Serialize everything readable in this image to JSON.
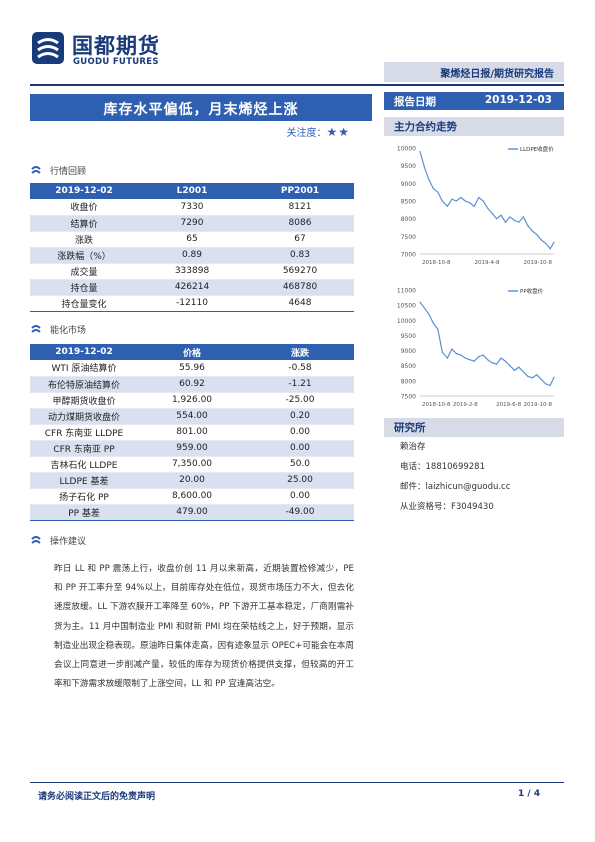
{
  "header": {
    "logo_cn": "国都期货",
    "logo_en": "GUODU FUTURES",
    "report_type": "聚烯烃日报/期货研究报告"
  },
  "title": "库存水平偏低，月末烯烃上涨",
  "attention": {
    "label": "关注度：",
    "stars": "★★"
  },
  "report_date": {
    "label": "报告日期",
    "value": "2019-12-03"
  },
  "market_review": {
    "heading": "行情回顾",
    "columns": [
      "2019-12-02",
      "L2001",
      "PP2001"
    ],
    "rows": [
      [
        "收盘价",
        "7330",
        "8121"
      ],
      [
        "结算价",
        "7290",
        "8086"
      ],
      [
        "涨跌",
        "65",
        "67"
      ],
      [
        "涨跌幅（%）",
        "0.89",
        "0.83"
      ],
      [
        "成交量",
        "333898",
        "569270"
      ],
      [
        "持仓量",
        "426214",
        "468780"
      ],
      [
        "持仓量变化",
        "-12110",
        "4648"
      ]
    ]
  },
  "energy_market": {
    "heading": "能化市场",
    "columns": [
      "2019-12-02",
      "价格",
      "涨跌"
    ],
    "rows": [
      [
        "WTI 原油结算价",
        "55.96",
        "-0.58"
      ],
      [
        "布伦特原油结算价",
        "60.92",
        "-1.21"
      ],
      [
        "甲醇期货收盘价",
        "1,926.00",
        "-25.00"
      ],
      [
        "动力煤期货收盘价",
        "554.00",
        "0.20"
      ],
      [
        "CFR 东南亚 LLDPE",
        "801.00",
        "0.00"
      ],
      [
        "CFR 东南亚 PP",
        "959.00",
        "0.00"
      ],
      [
        "吉林石化 LLDPE",
        "7,350.00",
        "50.0"
      ],
      [
        "LLDPE 基差",
        "20.00",
        "25.00"
      ],
      [
        "扬子石化 PP",
        "8,600.00",
        "0.00"
      ],
      [
        "PP 基差",
        "479.00",
        "-49.00"
      ]
    ]
  },
  "advice": {
    "heading": "操作建议",
    "text": "昨日 LL 和 PP 震荡上行，收盘价创 11 月以来新高，近期装置检修减少，PE 和 PP 开工率升至 94%以上，目前库存处在低位，现货市场压力不大，但去化速度放缓。LL 下游农膜开工率降至 60%，PP 下游开工基本稳定，厂商刚需补货为主。11 月中国制造业 PMI 和财新 PMI 均在荣枯线之上，好于预期，显示制造业出现企稳表现。原油昨日集体走高，因有迹象显示 OPEC+可能会在本周会议上同意进一步削减产量，较低的库存为现货价格提供支撑，但较高的开工率和下游需求放缓限制了上涨空间，LL 和 PP 宜逢高沽空。"
  },
  "sidebar": {
    "trend_heading": "主力合约走势",
    "research_heading": "研究所",
    "analyst_name": "赖治存",
    "phone": "电话：18810699281",
    "email": "邮件：laizhicun@guodu.cc",
    "license": "从业资格号：F3049430"
  },
  "chart_data": [
    {
      "type": "line",
      "series": [
        {
          "name": "LLDPE收盘价"
        }
      ],
      "x_ticks": [
        "2018-10-8",
        "2019-4-8",
        "2019-10-8"
      ],
      "y_ticks": [
        "7000",
        "7500",
        "8000",
        "8500",
        "9000",
        "9500",
        "10000"
      ],
      "ylim": [
        7000,
        10000
      ],
      "x": [
        "2018-10-08",
        "2018-10-22",
        "2018-11-05",
        "2018-11-19",
        "2018-12-03",
        "2018-12-17",
        "2019-01-02",
        "2019-01-16",
        "2019-01-30",
        "2019-02-13",
        "2019-02-27",
        "2019-03-13",
        "2019-03-27",
        "2019-04-10",
        "2019-04-24",
        "2019-05-08",
        "2019-05-22",
        "2019-06-05",
        "2019-06-19",
        "2019-07-03",
        "2019-07-17",
        "2019-07-31",
        "2019-08-14",
        "2019-08-28",
        "2019-09-11",
        "2019-09-25",
        "2019-10-09",
        "2019-10-23",
        "2019-11-06",
        "2019-11-20",
        "2019-12-02"
      ],
      "values": [
        9900,
        9450,
        9100,
        8850,
        8750,
        8500,
        8350,
        8550,
        8500,
        8600,
        8500,
        8450,
        8350,
        8600,
        8500,
        8300,
        8150,
        8000,
        8100,
        7900,
        8050,
        7950,
        7900,
        8050,
        7800,
        7650,
        7550,
        7400,
        7300,
        7150,
        7330
      ]
    },
    {
      "type": "line",
      "series": [
        {
          "name": "PP收盘价"
        }
      ],
      "x_ticks": [
        "2018-10-8",
        "2019-2-8",
        "2019-6-8",
        "2019-10-8"
      ],
      "y_ticks": [
        "7500",
        "8000",
        "8500",
        "9000",
        "9500",
        "10000",
        "10500",
        "11000"
      ],
      "ylim": [
        7500,
        11000
      ],
      "x": [
        "2018-10-08",
        "2018-10-22",
        "2018-11-05",
        "2018-11-19",
        "2018-12-03",
        "2018-12-17",
        "2019-01-02",
        "2019-01-16",
        "2019-01-30",
        "2019-02-13",
        "2019-02-27",
        "2019-03-13",
        "2019-03-27",
        "2019-04-10",
        "2019-04-24",
        "2019-05-08",
        "2019-05-22",
        "2019-06-05",
        "2019-06-19",
        "2019-07-03",
        "2019-07-17",
        "2019-07-31",
        "2019-08-14",
        "2019-08-28",
        "2019-09-11",
        "2019-09-25",
        "2019-10-09",
        "2019-10-23",
        "2019-11-06",
        "2019-11-20",
        "2019-12-02"
      ],
      "values": [
        10600,
        10400,
        10200,
        9900,
        9700,
        8950,
        8750,
        9050,
        8900,
        8850,
        8750,
        8700,
        8650,
        8800,
        8850,
        8700,
        8600,
        8550,
        8750,
        8650,
        8500,
        8350,
        8450,
        8300,
        8150,
        8100,
        8200,
        8050,
        7900,
        7850,
        8121
      ]
    }
  ],
  "footer": {
    "disclaimer": "请务必阅读正文后的免责声明",
    "page": "1 / 4"
  },
  "colors": {
    "brand": "#1a3b7a",
    "accent": "#2f5fb1",
    "band": "#d9e0ef"
  }
}
